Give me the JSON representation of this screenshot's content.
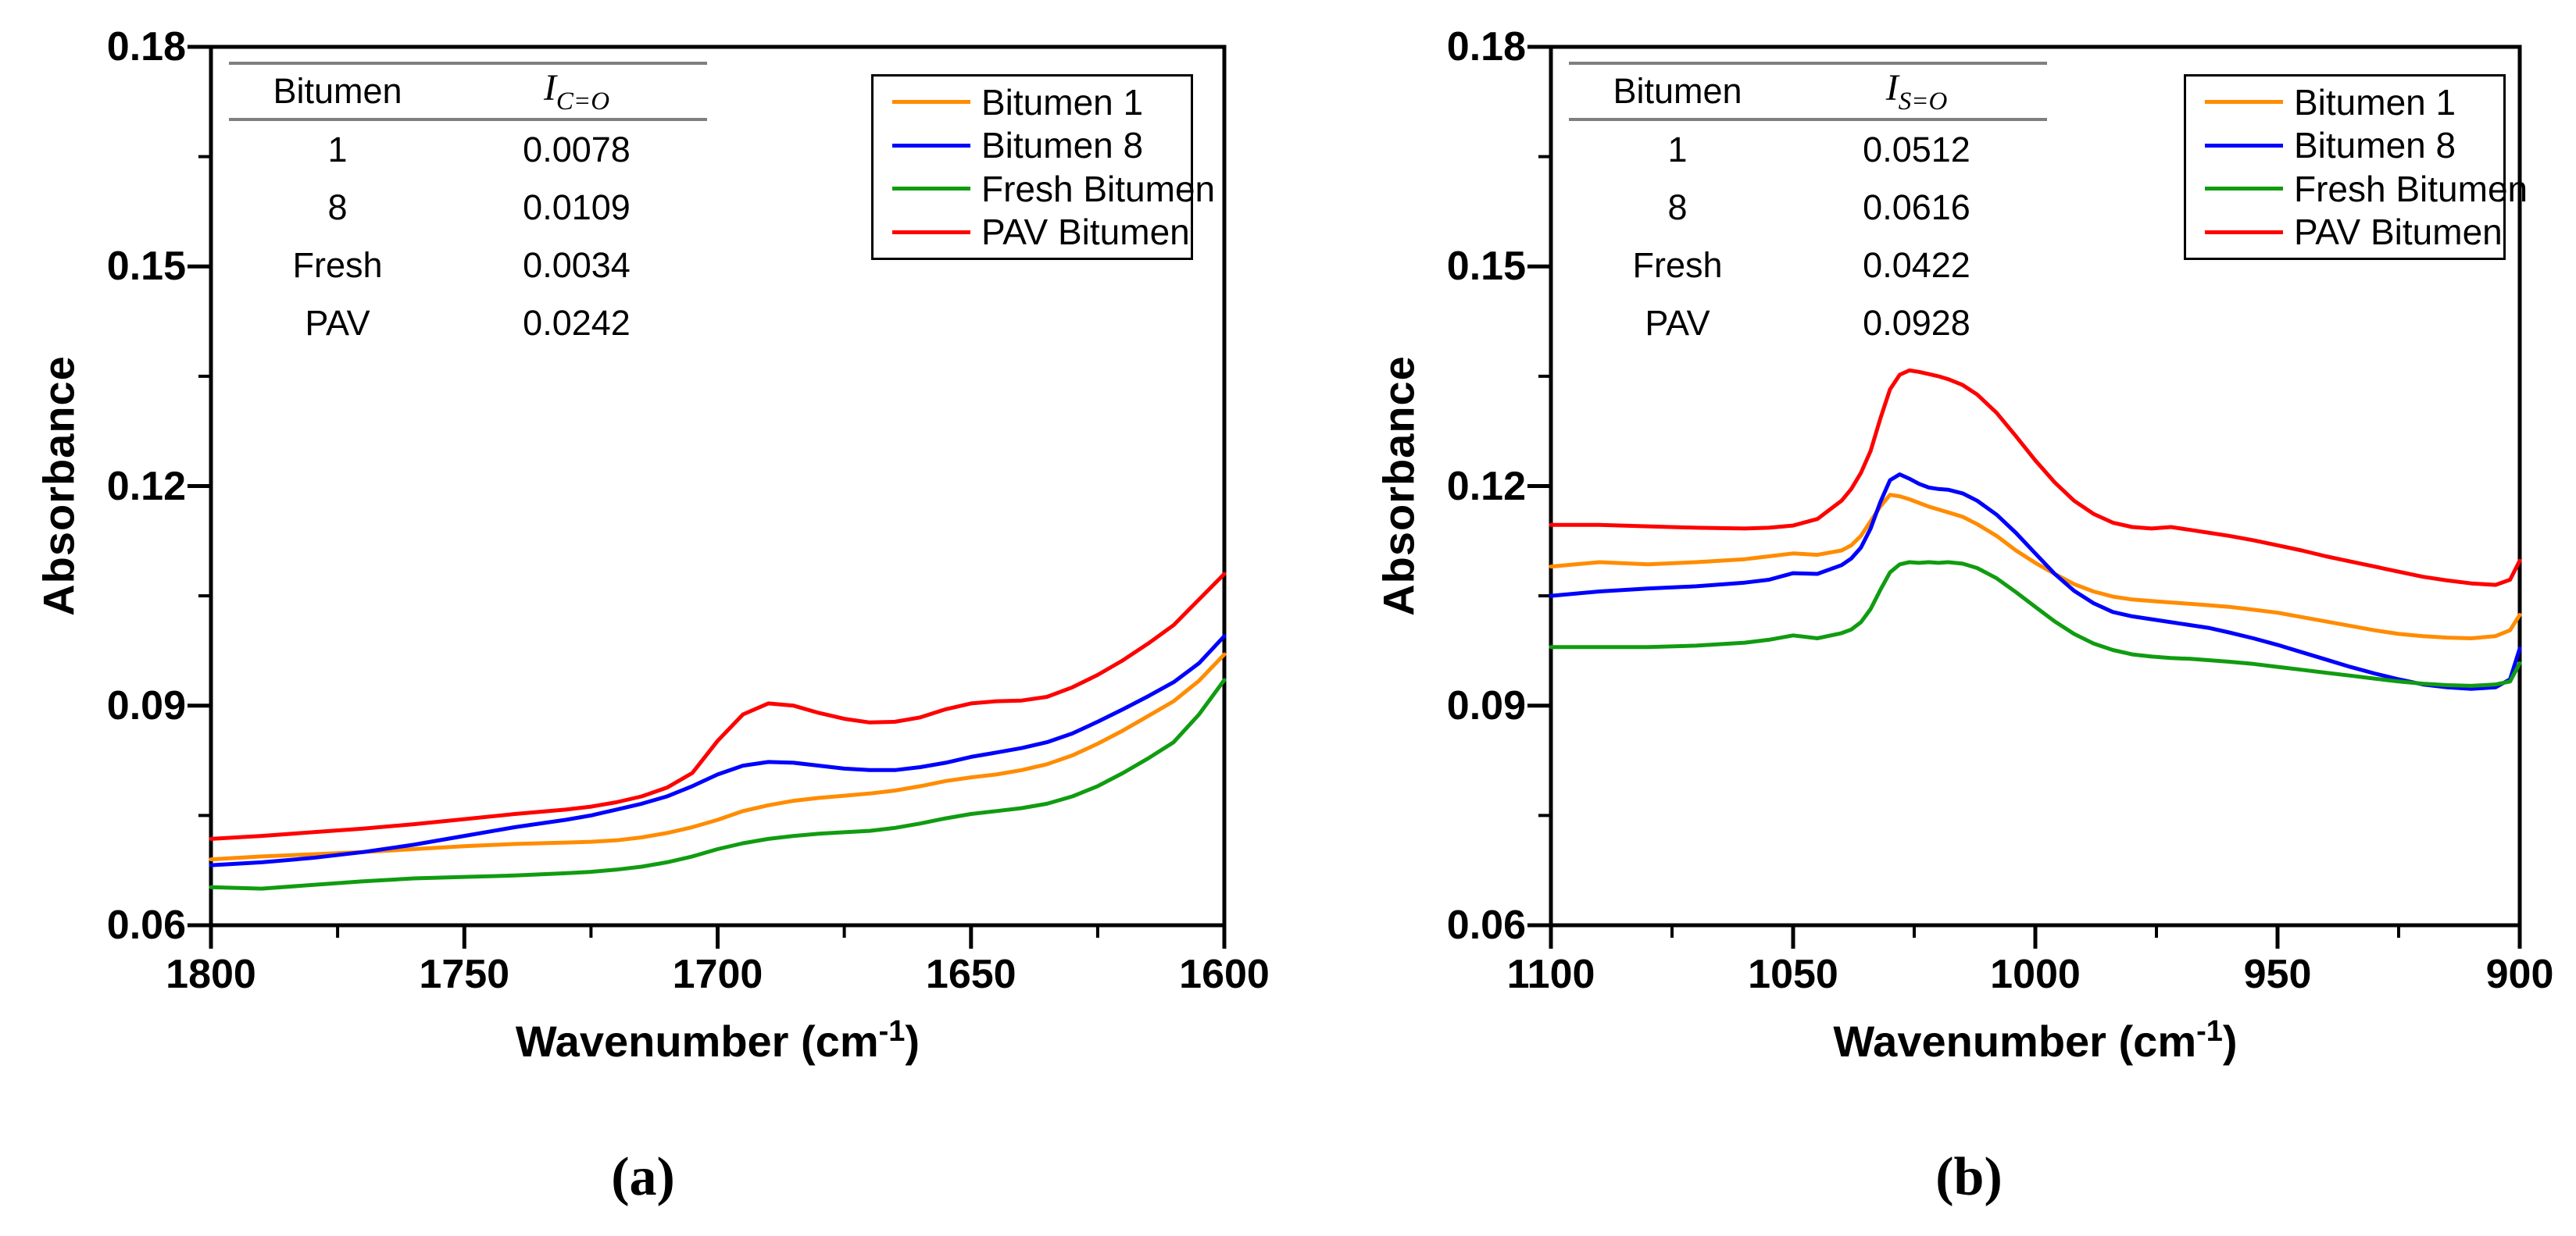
{
  "chart_data": [
    {
      "type": "line",
      "caption": "(a)",
      "y_axis_label": "Absorbance",
      "x_axis_label": {
        "pre": "Wavenumber (cm",
        "sup": "-1",
        "post": ")"
      },
      "xlim": [
        1800,
        1600
      ],
      "ylim": [
        0.06,
        0.18
      ],
      "grid": false,
      "legend_position": "top-right",
      "x_ticks_major": [
        "1800",
        "1750",
        "1700",
        "1650",
        "1600"
      ],
      "x_ticks_minor": [
        1775,
        1725,
        1675,
        1625
      ],
      "y_ticks_major": [
        "0.18",
        "0.15",
        "0.12",
        "0.09",
        "0.06"
      ],
      "y_ticks_minor": [
        0.165,
        0.135,
        0.105,
        0.075
      ],
      "inset_table": {
        "col1_header": "Bitumen",
        "col2_symbol": "I",
        "col2_subscript": "C=O",
        "rows": [
          [
            "1",
            "0.0078"
          ],
          [
            "8",
            "0.0109"
          ],
          [
            "Fresh",
            "0.0034"
          ],
          [
            "PAV",
            "0.0242"
          ]
        ]
      },
      "x": [
        1800,
        1790,
        1780,
        1770,
        1760,
        1750,
        1740,
        1730,
        1725,
        1720,
        1715,
        1710,
        1705,
        1700,
        1695,
        1690,
        1685,
        1680,
        1675,
        1670,
        1665,
        1660,
        1655,
        1650,
        1645,
        1640,
        1635,
        1630,
        1625,
        1620,
        1615,
        1610,
        1605,
        1600
      ],
      "series": [
        {
          "name": "Bitumen 1",
          "color": "#FF8C00",
          "values": [
            0.069,
            0.0694,
            0.0697,
            0.07,
            0.0704,
            0.0708,
            0.0711,
            0.0713,
            0.0714,
            0.0716,
            0.072,
            0.0726,
            0.0734,
            0.0744,
            0.0756,
            0.0764,
            0.077,
            0.0774,
            0.0777,
            0.078,
            0.0784,
            0.079,
            0.0797,
            0.0802,
            0.0806,
            0.0812,
            0.082,
            0.0832,
            0.0848,
            0.0866,
            0.0886,
            0.0906,
            0.0934,
            0.097
          ]
        },
        {
          "name": "Bitumen 8",
          "color": "#0000FF",
          "values": [
            0.0682,
            0.0686,
            0.0692,
            0.07,
            0.071,
            0.0722,
            0.0734,
            0.0744,
            0.075,
            0.0758,
            0.0766,
            0.0776,
            0.079,
            0.0806,
            0.0818,
            0.0823,
            0.0822,
            0.0818,
            0.0814,
            0.0812,
            0.0812,
            0.0816,
            0.0822,
            0.083,
            0.0836,
            0.0842,
            0.085,
            0.0862,
            0.0878,
            0.0895,
            0.0913,
            0.0932,
            0.0958,
            0.0995
          ]
        },
        {
          "name": "Fresh Bitumen",
          "color": "#109C10",
          "values": [
            0.0652,
            0.065,
            0.0655,
            0.066,
            0.0664,
            0.0666,
            0.0668,
            0.0671,
            0.0673,
            0.0676,
            0.068,
            0.0686,
            0.0694,
            0.0704,
            0.0712,
            0.0718,
            0.0722,
            0.0725,
            0.0727,
            0.0729,
            0.0733,
            0.0739,
            0.0746,
            0.0752,
            0.0756,
            0.076,
            0.0766,
            0.0776,
            0.079,
            0.0808,
            0.0828,
            0.085,
            0.0888,
            0.0935
          ]
        },
        {
          "name": "PAV Bitumen",
          "color": "#FF0000",
          "values": [
            0.0718,
            0.0722,
            0.0727,
            0.0732,
            0.0738,
            0.0745,
            0.0752,
            0.0758,
            0.0762,
            0.0768,
            0.0776,
            0.0788,
            0.0808,
            0.0852,
            0.0888,
            0.0903,
            0.09,
            0.089,
            0.0882,
            0.0877,
            0.0878,
            0.0884,
            0.0895,
            0.0903,
            0.0906,
            0.0907,
            0.0912,
            0.0925,
            0.0942,
            0.0962,
            0.0985,
            0.101,
            0.1045,
            0.108
          ]
        }
      ]
    },
    {
      "type": "line",
      "caption": "(b)",
      "y_axis_label": "Absorbance",
      "x_axis_label": {
        "pre": "Wavenumber (cm",
        "sup": "-1",
        "post": ")"
      },
      "xlim": [
        1100,
        900
      ],
      "ylim": [
        0.06,
        0.18
      ],
      "grid": false,
      "legend_position": "top-right",
      "x_ticks_major": [
        "1100",
        "1050",
        "1000",
        "950",
        "900"
      ],
      "x_ticks_minor": [
        1075,
        1025,
        975,
        925
      ],
      "y_ticks_major": [
        "0.18",
        "0.15",
        "0.12",
        "0.09",
        "0.06"
      ],
      "y_ticks_minor": [
        0.165,
        0.135,
        0.105,
        0.075
      ],
      "inset_table": {
        "col1_header": "Bitumen",
        "col2_symbol": "I",
        "col2_subscript": "S=O",
        "rows": [
          [
            "1",
            "0.0512"
          ],
          [
            "8",
            "0.0616"
          ],
          [
            "Fresh",
            "0.0422"
          ],
          [
            "PAV",
            "0.0928"
          ]
        ]
      },
      "x": [
        1100,
        1090,
        1080,
        1070,
        1060,
        1055,
        1050,
        1045,
        1040,
        1038,
        1036,
        1034,
        1032,
        1030,
        1028,
        1026,
        1024,
        1022,
        1020,
        1018,
        1015,
        1012,
        1008,
        1004,
        1000,
        996,
        992,
        988,
        984,
        980,
        976,
        972,
        968,
        964,
        960,
        955,
        950,
        945,
        940,
        935,
        930,
        925,
        920,
        915,
        910,
        905,
        902,
        900
      ],
      "series": [
        {
          "name": "Bitumen 1",
          "color": "#FF8C00",
          "values": [
            0.109,
            0.1096,
            0.1093,
            0.1096,
            0.11,
            0.1104,
            0.1108,
            0.1106,
            0.1112,
            0.1119,
            0.1132,
            0.1152,
            0.1172,
            0.1188,
            0.1186,
            0.1182,
            0.1177,
            0.1172,
            0.1168,
            0.1164,
            0.1158,
            0.1148,
            0.1132,
            0.1112,
            0.1095,
            0.108,
            0.1066,
            0.1056,
            0.1049,
            0.1045,
            0.1043,
            0.1041,
            0.1039,
            0.1037,
            0.1035,
            0.1031,
            0.1027,
            0.1021,
            0.1015,
            0.1009,
            0.1003,
            0.0998,
            0.0995,
            0.0993,
            0.0992,
            0.0995,
            0.1003,
            0.1024
          ]
        },
        {
          "name": "Bitumen 8",
          "color": "#0000FF",
          "values": [
            0.105,
            0.1056,
            0.106,
            0.1063,
            0.1068,
            0.1072,
            0.1081,
            0.108,
            0.1092,
            0.1101,
            0.1116,
            0.1142,
            0.1178,
            0.1208,
            0.1216,
            0.121,
            0.1203,
            0.1198,
            0.1196,
            0.1195,
            0.119,
            0.118,
            0.1161,
            0.1136,
            0.1108,
            0.108,
            0.1057,
            0.104,
            0.1028,
            0.1022,
            0.1018,
            0.1014,
            0.101,
            0.1006,
            0.1,
            0.0992,
            0.0983,
            0.0973,
            0.0963,
            0.0953,
            0.0944,
            0.0936,
            0.0929,
            0.0925,
            0.0923,
            0.0925,
            0.0936,
            0.0978
          ]
        },
        {
          "name": "Fresh Bitumen",
          "color": "#109C10",
          "values": [
            0.098,
            0.098,
            0.098,
            0.0982,
            0.0986,
            0.099,
            0.0996,
            0.0992,
            0.0999,
            0.1004,
            0.1014,
            0.1032,
            0.1058,
            0.1082,
            0.1093,
            0.1096,
            0.1095,
            0.1096,
            0.1095,
            0.1096,
            0.1094,
            0.1088,
            0.1074,
            0.1055,
            0.1035,
            0.1015,
            0.0998,
            0.0985,
            0.0976,
            0.097,
            0.0967,
            0.0965,
            0.0964,
            0.0962,
            0.096,
            0.0957,
            0.0953,
            0.0949,
            0.0945,
            0.0941,
            0.0937,
            0.0933,
            0.093,
            0.0928,
            0.0927,
            0.0929,
            0.0933,
            0.0958
          ]
        },
        {
          "name": "PAV Bitumen",
          "color": "#FF0000",
          "values": [
            0.1147,
            0.1147,
            0.1145,
            0.1143,
            0.1142,
            0.1143,
            0.1146,
            0.1155,
            0.118,
            0.1196,
            0.1218,
            0.1248,
            0.1292,
            0.1332,
            0.1352,
            0.1358,
            0.1356,
            0.1353,
            0.135,
            0.1346,
            0.1338,
            0.1325,
            0.13,
            0.1268,
            0.1235,
            0.1205,
            0.118,
            0.1162,
            0.115,
            0.1144,
            0.1142,
            0.1144,
            0.114,
            0.1136,
            0.1132,
            0.1126,
            0.1119,
            0.1112,
            0.1104,
            0.1097,
            0.109,
            0.1083,
            0.1076,
            0.1071,
            0.1067,
            0.1065,
            0.1072,
            0.1098
          ]
        }
      ]
    }
  ]
}
